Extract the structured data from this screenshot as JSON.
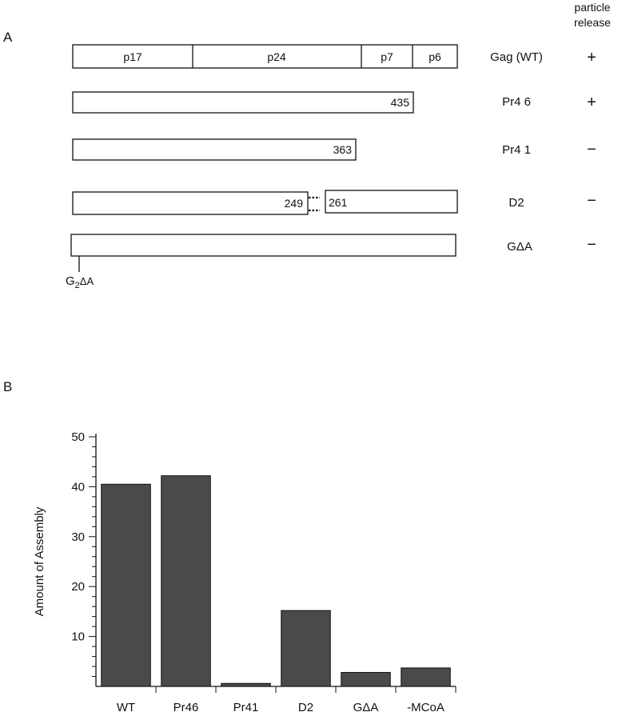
{
  "panel_a": {
    "label": "A",
    "header": [
      "particle",
      "release"
    ],
    "constructs": [
      {
        "name": "Gag (WT)",
        "release": "+",
        "segments": [
          "p17",
          "p24",
          "p7",
          "p6"
        ]
      },
      {
        "name": "Pr4 6",
        "release": "+",
        "end_label": "435"
      },
      {
        "name": "Pr4 1",
        "release": "−",
        "end_label": "363"
      },
      {
        "name": "D2",
        "release": "−",
        "left_end_label": "249",
        "right_start_label": "261"
      },
      {
        "name": "GΔA",
        "release": "−"
      }
    ],
    "mutation_label": {
      "base": "G",
      "sub": "2",
      "rest": "ΔA"
    }
  },
  "panel_b": {
    "label": "B"
  },
  "chart_data": {
    "type": "bar",
    "categories": [
      "WT",
      "Pr46",
      "Pr41",
      "D2",
      "GΔA",
      "-MCoA"
    ],
    "values": [
      40.5,
      42.2,
      0.6,
      15.2,
      2.8,
      3.7
    ],
    "ylabel": "Amount of Assembly",
    "xlabel": "",
    "ylim": [
      0,
      50
    ],
    "yticks": [
      10,
      20,
      30,
      40,
      50
    ],
    "grid": false,
    "bar_color": "#4a4a4a"
  }
}
